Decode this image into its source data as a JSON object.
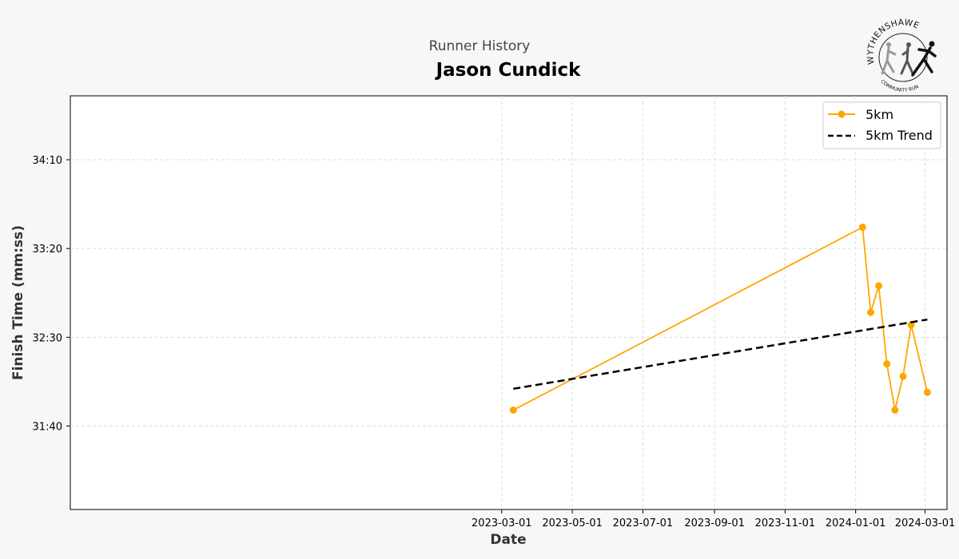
{
  "header": {
    "subtitle": "Runner History",
    "title": "Jason Cundick"
  },
  "logo": {
    "top_text": "WYTHENSHAWE",
    "bottom_text": "COMMUNITY RUN",
    "icon": "runners-logo-icon"
  },
  "colors": {
    "page_bg": "#f7f7f7",
    "plot_bg": "#ffffff",
    "series": "#ffa500",
    "trend": "#000000",
    "grid": "#dddddd"
  },
  "chart_data": {
    "type": "line",
    "title": "Jason Cundick",
    "subtitle": "Runner History",
    "xlabel": "Date",
    "ylabel": "Finish Time (mm:ss)",
    "x_ticks": [
      "2023-03-01",
      "2023-05-01",
      "2023-07-01",
      "2023-09-01",
      "2023-11-01",
      "2024-01-01",
      "2024-03-01"
    ],
    "y_ticks": [
      "31:40",
      "32:30",
      "33:20",
      "34:10"
    ],
    "y_tick_seconds": [
      1900,
      1950,
      2000,
      2050
    ],
    "xlim": [
      "2022-02-21",
      "2024-03-20"
    ],
    "ylim_seconds": [
      1853,
      2086
    ],
    "grid": true,
    "legend_position": "top-right",
    "series": [
      {
        "name": "5km",
        "style": "line-markers",
        "color": "#ffa500",
        "points": [
          {
            "x": "2023-03-11",
            "y": "31:49"
          },
          {
            "x": "2024-01-07",
            "y": "33:32"
          },
          {
            "x": "2024-01-14",
            "y": "32:44"
          },
          {
            "x": "2024-01-21",
            "y": "32:59"
          },
          {
            "x": "2024-01-28",
            "y": "32:15"
          },
          {
            "x": "2024-02-04",
            "y": "31:49"
          },
          {
            "x": "2024-02-11",
            "y": "32:08"
          },
          {
            "x": "2024-02-18",
            "y": "32:37"
          },
          {
            "x": "2024-03-03",
            "y": "31:59"
          }
        ]
      },
      {
        "name": "5km Trend",
        "style": "dashed",
        "color": "#000000",
        "points": [
          {
            "x": "2023-03-11",
            "y": "32:01"
          },
          {
            "x": "2024-03-03",
            "y": "32:40"
          }
        ]
      }
    ]
  }
}
